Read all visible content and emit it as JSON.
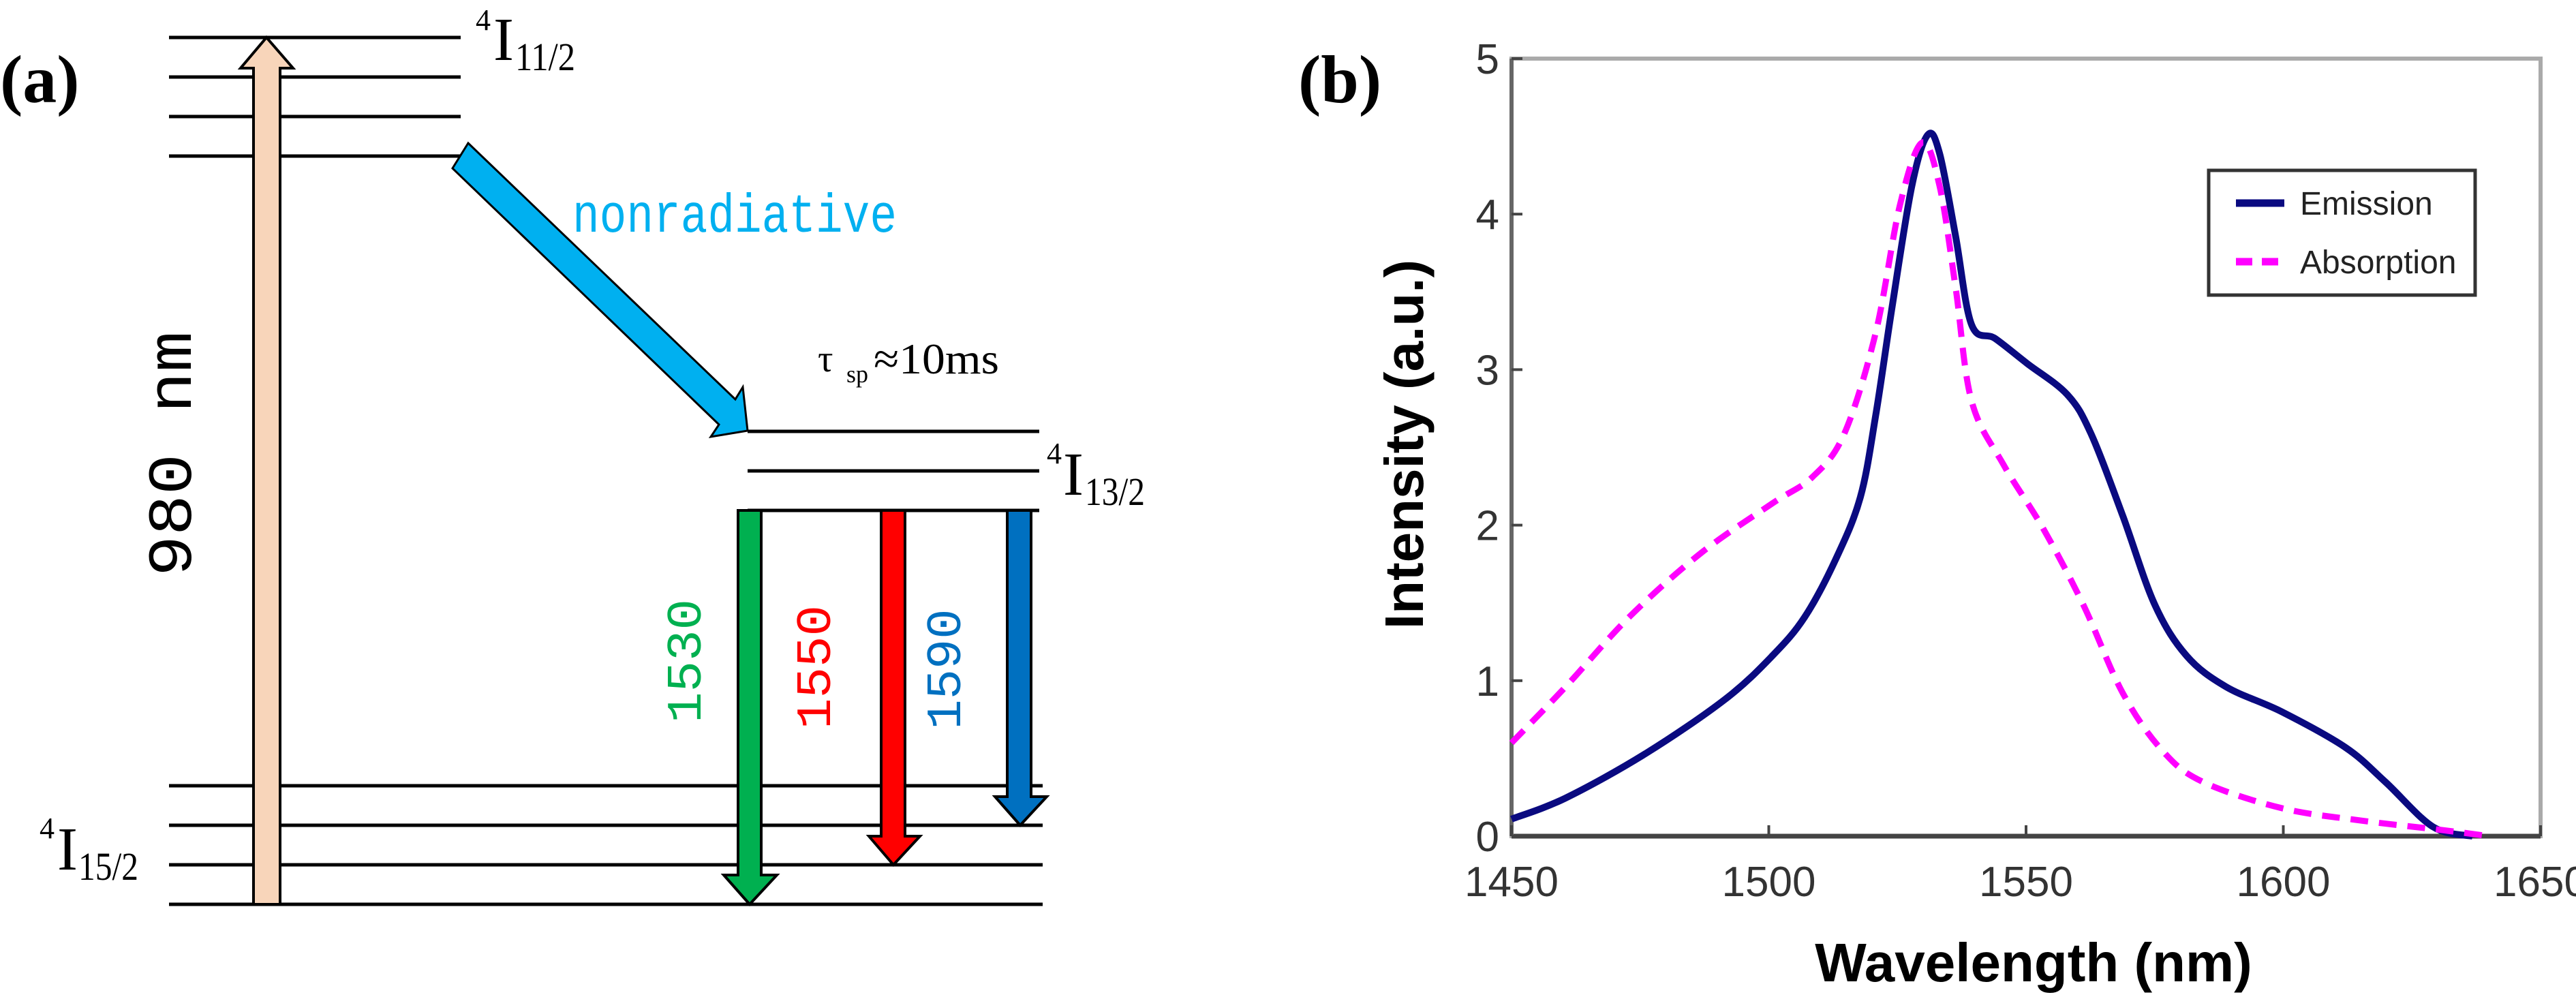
{
  "panel_a": {
    "label": "(a)",
    "upper_level": {
      "sup": "4",
      "main": "I",
      "sub": "11/2"
    },
    "middle_level": {
      "sup": "4",
      "main": "I",
      "sub": "13/2"
    },
    "ground_level": {
      "sup": "4",
      "main": "I",
      "sub": "15/2"
    },
    "pump_label": "980  nm",
    "nonradiative_label": "nonradiative",
    "lifetime": {
      "symbol": "τ",
      "sub": "sp",
      "value": "≈10ms"
    },
    "emission_labels": [
      "1530",
      "1550",
      "1590"
    ],
    "colors": {
      "pump": "#F8D5BA",
      "nonradiative": "#00B0F0",
      "e1530": "#00B050",
      "e1550": "#FF0000",
      "e1590": "#0070C0"
    }
  },
  "panel_b": {
    "label": "(b)"
  },
  "chart_data": {
    "type": "line",
    "xlabel": "Wavelength (nm)",
    "ylabel": "Intensity (a.u.)",
    "xlim": [
      1450,
      1650
    ],
    "ylim": [
      0,
      5
    ],
    "xticks": [
      "1450",
      "1500",
      "1550",
      "1600",
      "1650"
    ],
    "yticks": [
      "0",
      "1",
      "2",
      "3",
      "4",
      "5"
    ],
    "legend_position": "top-right",
    "grid": false,
    "series": [
      {
        "name": "Emission",
        "color": "#0A0A80",
        "style": "solid",
        "x": [
          1450,
          1460.5,
          1476,
          1491.5,
          1500.7,
          1507,
          1513,
          1517.8,
          1520.8,
          1524,
          1527.8,
          1530.9,
          1533.2,
          1536.3,
          1539.4,
          1544,
          1550.2,
          1558,
          1562.6,
          1568.8,
          1575,
          1581.2,
          1588.9,
          1599.7,
          1612.1,
          1619.8,
          1629.1,
          1636.8
        ],
        "y": [
          0.11,
          0.245,
          0.53,
          0.88,
          1.16,
          1.41,
          1.78,
          2.18,
          2.71,
          3.41,
          4.18,
          4.51,
          4.39,
          3.86,
          3.29,
          3.2,
          3.04,
          2.84,
          2.59,
          2.06,
          1.49,
          1.16,
          0.96,
          0.8,
          0.57,
          0.35,
          0.06,
          0
        ]
      },
      {
        "name": "Absorption",
        "color": "#FF00FF",
        "style": "dashed",
        "x": [
          1450,
          1460.5,
          1472.9,
          1486.8,
          1500.7,
          1508.5,
          1514.7,
          1520.8,
          1525.5,
          1529.8,
          1533.2,
          1536.3,
          1539.4,
          1545.6,
          1553.3,
          1561.1,
          1568.8,
          1576.5,
          1584.3,
          1599.7,
          1615.2,
          1630.7,
          1640
        ],
        "y": [
          0.6,
          0.96,
          1.41,
          1.82,
          2.14,
          2.31,
          2.59,
          3.24,
          4.06,
          4.46,
          4.18,
          3.53,
          2.8,
          2.39,
          1.98,
          1.49,
          0.92,
          0.55,
          0.35,
          0.18,
          0.1,
          0.04,
          0
        ]
      }
    ]
  }
}
